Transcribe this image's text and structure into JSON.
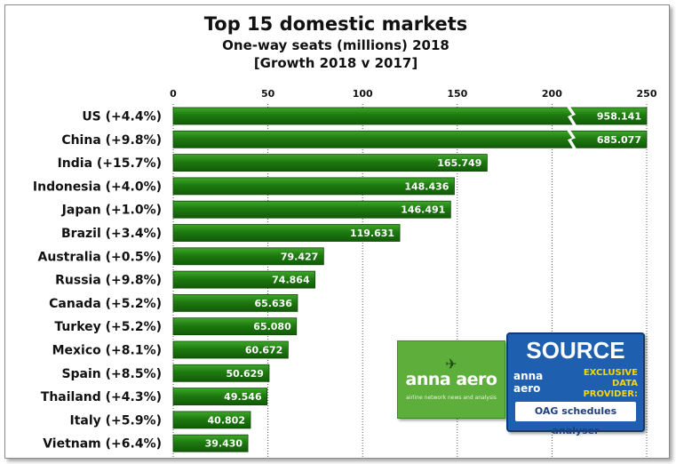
{
  "chart_data": {
    "type": "bar",
    "orientation": "horizontal",
    "title": "Top 15 domestic markets",
    "subtitle_line1": "One-way seats (millions) 2018",
    "subtitle_line2": "[Growth 2018 v 2017]",
    "categories": [
      "US (+4.4%)",
      "China (+9.8%)",
      "India (+15.7%)",
      "Indonesia (+4.0%)",
      "Japan (+1.0%)",
      "Brazil (+3.4%)",
      "Australia (+0.5%)",
      "Russia (+9.8%)",
      "Canada (+5.2%)",
      "Turkey (+5.2%)",
      "Mexico (+8.1%)",
      "Spain (+8.5%)",
      "Thailand (+4.3%)",
      "Italy (+5.9%)",
      "Vietnam (+6.4%)"
    ],
    "values": [
      958.141,
      685.077,
      165.749,
      148.436,
      146.491,
      119.631,
      79.427,
      74.864,
      65.636,
      65.08,
      60.672,
      50.629,
      49.546,
      40.802,
      39.43
    ],
    "data_labels": [
      "958.141",
      "685.077",
      "165.749",
      "148.436",
      "146.491",
      "119.631",
      "79.427",
      "74.864",
      "65.636",
      "65.080",
      "60.672",
      "50.629",
      "49.546",
      "40.802",
      "39.430"
    ],
    "xlim": [
      0,
      250
    ],
    "x_ticks": [
      "0",
      "50",
      "100",
      "150",
      "200",
      "250"
    ],
    "broken_axis_bars": [
      "US (+4.4%)",
      "China (+9.8%)"
    ],
    "grid": true,
    "legend": "none",
    "bar_color": "#1e7a10",
    "bar_highlight": "#3ea82a"
  },
  "logos": {
    "anna": {
      "brand": "anna aero",
      "tagline": "airline network news and analysis",
      "icon": "plane-icon",
      "color": "#5dae3a"
    },
    "source": {
      "title": "SOURCE",
      "mini_brand": "anna aero",
      "exclusive": "EXCLUSIVE DATA PROVIDER:",
      "provider": "OAG schedules analyser",
      "color": "#1f5fb0",
      "accent": "#f5d50b"
    }
  }
}
